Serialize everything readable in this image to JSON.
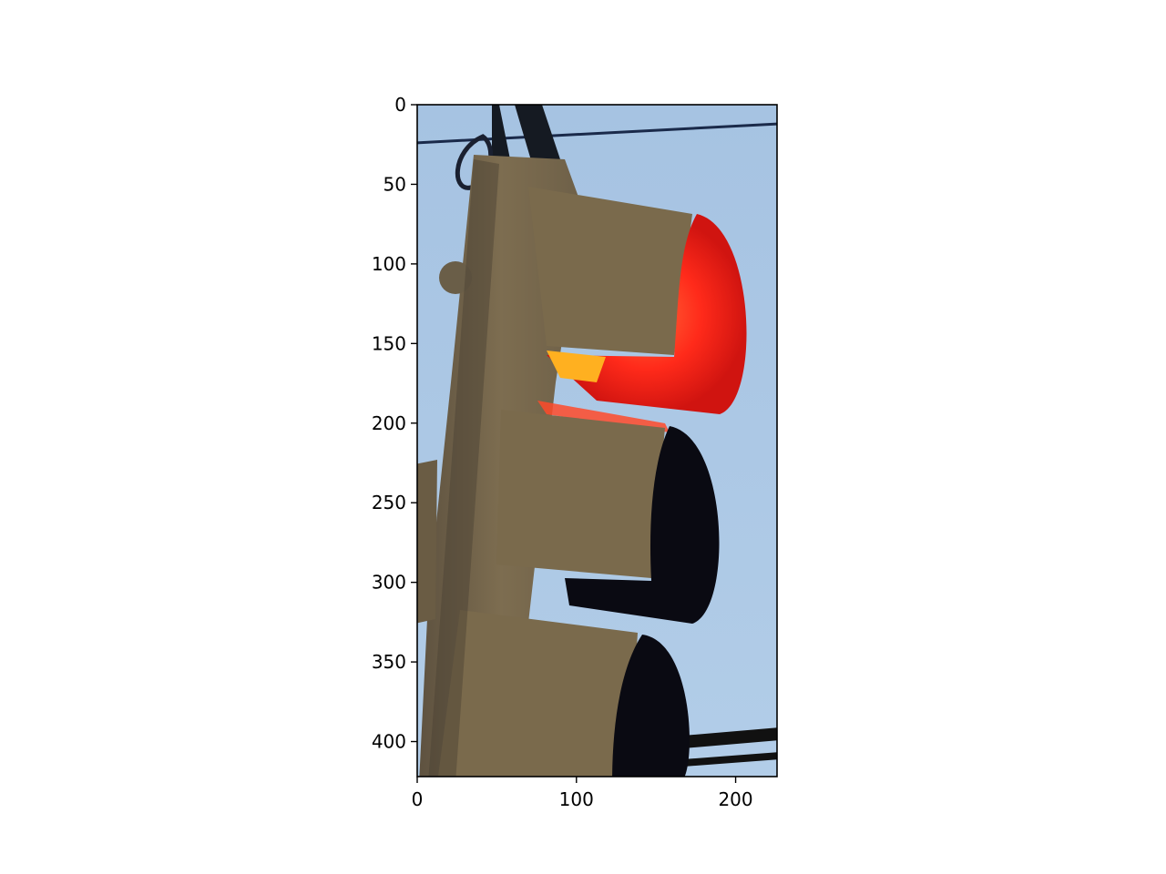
{
  "figure": {
    "image_description_icon": "traffic-light-photo",
    "colors": {
      "sky": "#a9c6e4",
      "housing": "#7a6a4c",
      "red_lamp": "#ff2a1a",
      "dark_lamp": "#0a0a12",
      "frame": "#000000"
    }
  },
  "axes": {
    "y_ticks": [
      "0",
      "50",
      "100",
      "150",
      "200",
      "250",
      "300",
      "350",
      "400"
    ],
    "x_ticks": [
      "0",
      "100",
      "200"
    ],
    "x_range": [
      0,
      226
    ],
    "y_range": [
      0,
      422
    ]
  }
}
